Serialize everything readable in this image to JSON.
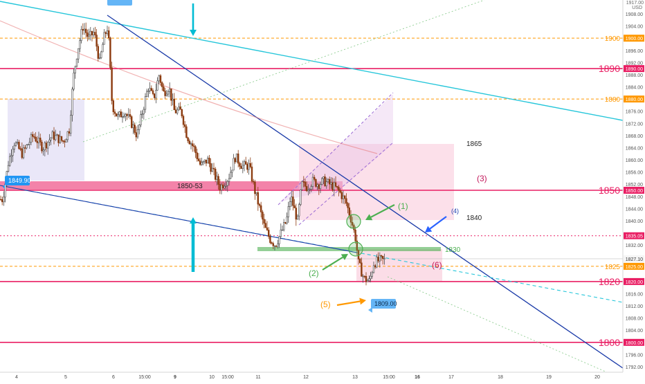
{
  "chart_data": {
    "type": "candlestick",
    "currency_label": "USD",
    "top_price_label": "1917.00",
    "y_axis": {
      "min": 1790,
      "max": 1918,
      "ticks": [
        "1908.00",
        "1904.00",
        "1896.00",
        "1892.00",
        "1888.00",
        "1884.00",
        "1876.00",
        "1872.00",
        "1868.00",
        "1864.00",
        "1860.00",
        "1856.00",
        "1852.00",
        "1848.00",
        "1844.00",
        "1840.00",
        "1832.00",
        "1828.00",
        "1816.00",
        "1812.00",
        "1808.00",
        "1804.00",
        "1796.00",
        "1792.00"
      ]
    },
    "x_axis": {
      "labels": [
        "4",
        "5",
        "6",
        "15:00",
        "9",
        "15:00",
        "10",
        "11",
        "12",
        "13",
        "15:00",
        "16",
        "17",
        "18",
        "19",
        "20"
      ]
    },
    "horizontal_levels": [
      {
        "value": 1900,
        "label": "1900",
        "tag": "1900.00",
        "color": "#ff9800",
        "style": "dashed"
      },
      {
        "value": 1890,
        "label": "1890",
        "tag": "1890.00",
        "color": "#e91e63",
        "style": "solid"
      },
      {
        "value": 1880,
        "label": "1880",
        "tag": "1880.00",
        "color": "#ff9800",
        "style": "dashed"
      },
      {
        "value": 1850,
        "label": "1850",
        "tag": "1850.00",
        "color": "#e91e63",
        "style": "solid"
      },
      {
        "value": 1835.05,
        "label": "",
        "tag": "1835.05",
        "color": "#e91e63",
        "style": "dotted"
      },
      {
        "value": 1825,
        "label": "1825",
        "tag": "1825.00",
        "color": "#ff9800",
        "style": "dashed"
      },
      {
        "value": 1820,
        "label": "1820",
        "tag": "1820.00",
        "color": "#e91e63",
        "style": "solid"
      },
      {
        "value": 1800,
        "label": "1800",
        "tag": "1800.00",
        "color": "#e91e63",
        "style": "solid"
      }
    ],
    "last_price_tag": "1827.10",
    "annotations": {
      "zone_label": "1850-53",
      "start_tag": "1849.90",
      "low_tag": "1809.00",
      "label_1865": "1865",
      "label_1840": "1840",
      "label_1830": "1830",
      "marker_1": "(1)",
      "marker_2": "(2)",
      "marker_3": "(3)",
      "marker_4": "(4)",
      "marker_5": "(5)",
      "marker_6": "(6)"
    },
    "candle_anchors": [
      [
        4,
        1847
      ],
      [
        12,
        1859
      ],
      [
        20,
        1866
      ],
      [
        32,
        1862
      ],
      [
        48,
        1868
      ],
      [
        62,
        1864
      ],
      [
        76,
        1868
      ],
      [
        92,
        1866
      ],
      [
        100,
        1870
      ],
      [
        106,
        1887
      ],
      [
        112,
        1896
      ],
      [
        120,
        1904
      ],
      [
        128,
        1900
      ],
      [
        136,
        1902
      ],
      [
        144,
        1892
      ],
      [
        150,
        1900
      ],
      [
        156,
        1904
      ],
      [
        162,
        1878
      ],
      [
        170,
        1874
      ],
      [
        180,
        1876
      ],
      [
        190,
        1872
      ],
      [
        198,
        1868
      ],
      [
        206,
        1876
      ],
      [
        214,
        1884
      ],
      [
        222,
        1880
      ],
      [
        230,
        1888
      ],
      [
        236,
        1882
      ],
      [
        244,
        1884
      ],
      [
        252,
        1876
      ],
      [
        262,
        1876
      ],
      [
        270,
        1868
      ],
      [
        280,
        1864
      ],
      [
        290,
        1858
      ],
      [
        300,
        1860
      ],
      [
        308,
        1856
      ],
      [
        318,
        1851
      ],
      [
        330,
        1854
      ],
      [
        340,
        1861
      ],
      [
        350,
        1858
      ],
      [
        360,
        1858
      ],
      [
        368,
        1850
      ],
      [
        374,
        1845
      ],
      [
        382,
        1838
      ],
      [
        390,
        1834
      ],
      [
        398,
        1832
      ],
      [
        406,
        1836
      ],
      [
        414,
        1840
      ],
      [
        420,
        1848
      ],
      [
        430,
        1840
      ],
      [
        436,
        1852
      ],
      [
        444,
        1851
      ],
      [
        452,
        1853
      ],
      [
        460,
        1852
      ],
      [
        468,
        1853
      ],
      [
        476,
        1852
      ],
      [
        484,
        1851
      ],
      [
        492,
        1849
      ],
      [
        500,
        1846
      ],
      [
        508,
        1840
      ],
      [
        514,
        1834
      ],
      [
        518,
        1826
      ],
      [
        526,
        1821
      ],
      [
        534,
        1820
      ],
      [
        540,
        1826
      ],
      [
        548,
        1827
      ],
      [
        556,
        1827
      ]
    ]
  }
}
